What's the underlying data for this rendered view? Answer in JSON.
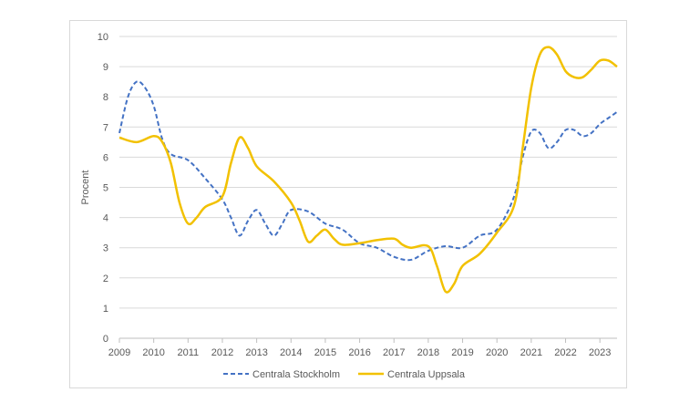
{
  "chart_data": {
    "type": "line",
    "ylabel": "Procent",
    "xlabel": "",
    "ylim": [
      0,
      10
    ],
    "xlim": [
      2009,
      2023.5
    ],
    "y_ticks": [
      0,
      1,
      2,
      3,
      4,
      5,
      6,
      7,
      8,
      9,
      10
    ],
    "x_ticks": [
      2009,
      2010,
      2011,
      2012,
      2013,
      2014,
      2015,
      2016,
      2017,
      2018,
      2019,
      2020,
      2021,
      2022,
      2023
    ],
    "grid": "horizontal",
    "legend_position": "bottom",
    "series": [
      {
        "name": "Centrala Stockholm",
        "color": "#4472c4",
        "style": "dashed",
        "points": [
          [
            2009.0,
            6.8
          ],
          [
            2009.25,
            8.0
          ],
          [
            2009.5,
            8.5
          ],
          [
            2009.75,
            8.3
          ],
          [
            2010.0,
            7.7
          ],
          [
            2010.25,
            6.6
          ],
          [
            2010.5,
            6.1
          ],
          [
            2011.0,
            5.9
          ],
          [
            2011.5,
            5.3
          ],
          [
            2012.0,
            4.6
          ],
          [
            2012.25,
            4.0
          ],
          [
            2012.5,
            3.4
          ],
          [
            2012.75,
            3.9
          ],
          [
            2013.0,
            4.25
          ],
          [
            2013.25,
            3.8
          ],
          [
            2013.5,
            3.4
          ],
          [
            2013.75,
            3.8
          ],
          [
            2014.0,
            4.25
          ],
          [
            2014.5,
            4.2
          ],
          [
            2015.0,
            3.8
          ],
          [
            2015.5,
            3.6
          ],
          [
            2016.0,
            3.15
          ],
          [
            2016.5,
            3.0
          ],
          [
            2017.0,
            2.7
          ],
          [
            2017.5,
            2.6
          ],
          [
            2018.0,
            2.9
          ],
          [
            2018.5,
            3.05
          ],
          [
            2019.0,
            3.0
          ],
          [
            2019.5,
            3.4
          ],
          [
            2020.0,
            3.6
          ],
          [
            2020.5,
            4.7
          ],
          [
            2020.75,
            6.0
          ],
          [
            2021.0,
            6.85
          ],
          [
            2021.25,
            6.8
          ],
          [
            2021.5,
            6.3
          ],
          [
            2021.75,
            6.5
          ],
          [
            2022.0,
            6.9
          ],
          [
            2022.25,
            6.9
          ],
          [
            2022.5,
            6.7
          ],
          [
            2022.75,
            6.8
          ],
          [
            2023.0,
            7.1
          ],
          [
            2023.25,
            7.3
          ],
          [
            2023.5,
            7.5
          ]
        ]
      },
      {
        "name": "Centrala Uppsala",
        "color": "#f2c100",
        "style": "solid",
        "points": [
          [
            2009.0,
            6.65
          ],
          [
            2009.5,
            6.5
          ],
          [
            2010.0,
            6.7
          ],
          [
            2010.25,
            6.5
          ],
          [
            2010.5,
            5.8
          ],
          [
            2010.75,
            4.5
          ],
          [
            2011.0,
            3.8
          ],
          [
            2011.25,
            4.0
          ],
          [
            2011.5,
            4.35
          ],
          [
            2012.0,
            4.7
          ],
          [
            2012.25,
            5.8
          ],
          [
            2012.5,
            6.65
          ],
          [
            2012.75,
            6.3
          ],
          [
            2013.0,
            5.7
          ],
          [
            2013.5,
            5.2
          ],
          [
            2014.0,
            4.5
          ],
          [
            2014.25,
            3.9
          ],
          [
            2014.5,
            3.2
          ],
          [
            2014.75,
            3.4
          ],
          [
            2015.0,
            3.6
          ],
          [
            2015.25,
            3.3
          ],
          [
            2015.5,
            3.1
          ],
          [
            2016.0,
            3.15
          ],
          [
            2016.5,
            3.25
          ],
          [
            2017.0,
            3.3
          ],
          [
            2017.25,
            3.1
          ],
          [
            2017.5,
            3.0
          ],
          [
            2018.0,
            3.05
          ],
          [
            2018.25,
            2.4
          ],
          [
            2018.5,
            1.55
          ],
          [
            2018.75,
            1.8
          ],
          [
            2019.0,
            2.4
          ],
          [
            2019.5,
            2.8
          ],
          [
            2020.0,
            3.5
          ],
          [
            2020.5,
            4.4
          ],
          [
            2020.75,
            6.3
          ],
          [
            2021.0,
            8.3
          ],
          [
            2021.25,
            9.4
          ],
          [
            2021.5,
            9.65
          ],
          [
            2021.75,
            9.4
          ],
          [
            2022.0,
            8.85
          ],
          [
            2022.25,
            8.65
          ],
          [
            2022.5,
            8.65
          ],
          [
            2022.75,
            8.9
          ],
          [
            2023.0,
            9.2
          ],
          [
            2023.25,
            9.2
          ],
          [
            2023.5,
            9.0
          ]
        ]
      }
    ]
  }
}
